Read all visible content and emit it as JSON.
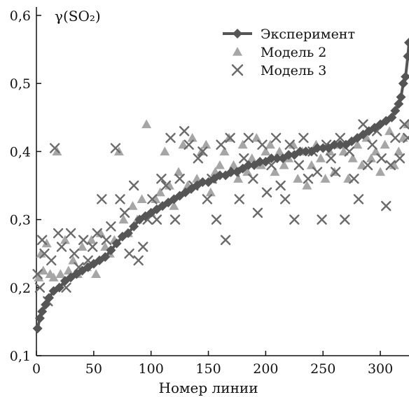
{
  "chart_data": {
    "type": "scatter",
    "xlabel": "Номер линии",
    "ylabel": "γ(SO₂)",
    "xlim": [
      0,
      325
    ],
    "ylim": [
      0.1,
      0.6
    ],
    "xticks": [
      "0",
      "50",
      "100",
      "150",
      "200",
      "250",
      "300"
    ],
    "yticks": [
      "0,1",
      "0,2",
      "0,3",
      "0,4",
      "0,5",
      "0,6"
    ],
    "legend_position": "top-right",
    "colors": {
      "experiment": "#555555",
      "model2": "#a6a6a6",
      "model3": "#6a6a6a",
      "axis": "#111111"
    },
    "series": [
      {
        "name": "Эксперимент",
        "marker": "diamond-line",
        "x": [
          1,
          3,
          5,
          8,
          11,
          15,
          20,
          25,
          30,
          35,
          40,
          45,
          50,
          55,
          60,
          65,
          70,
          75,
          80,
          85,
          90,
          95,
          100,
          105,
          110,
          115,
          120,
          125,
          130,
          135,
          140,
          145,
          150,
          155,
          160,
          165,
          170,
          175,
          180,
          185,
          190,
          195,
          200,
          205,
          210,
          215,
          220,
          225,
          230,
          235,
          240,
          245,
          250,
          255,
          260,
          265,
          270,
          275,
          280,
          285,
          290,
          295,
          300,
          305,
          310,
          313,
          316,
          318,
          320,
          322,
          324,
          325
        ],
        "y": [
          0.14,
          0.155,
          0.165,
          0.175,
          0.185,
          0.195,
          0.2,
          0.21,
          0.215,
          0.22,
          0.225,
          0.23,
          0.235,
          0.24,
          0.245,
          0.255,
          0.265,
          0.275,
          0.28,
          0.29,
          0.3,
          0.305,
          0.31,
          0.315,
          0.32,
          0.325,
          0.33,
          0.335,
          0.34,
          0.345,
          0.35,
          0.355,
          0.355,
          0.36,
          0.365,
          0.365,
          0.37,
          0.37,
          0.375,
          0.38,
          0.38,
          0.385,
          0.385,
          0.39,
          0.39,
          0.39,
          0.395,
          0.395,
          0.4,
          0.4,
          0.4,
          0.405,
          0.405,
          0.405,
          0.41,
          0.41,
          0.41,
          0.415,
          0.42,
          0.425,
          0.43,
          0.435,
          0.44,
          0.445,
          0.45,
          0.46,
          0.47,
          0.48,
          0.5,
          0.51,
          0.54,
          0.56
        ]
      },
      {
        "name": "Модель 2",
        "marker": "triangle",
        "x": [
          2,
          4,
          6,
          9,
          12,
          15,
          18,
          21,
          25,
          28,
          32,
          36,
          40,
          44,
          48,
          52,
          56,
          60,
          64,
          68,
          72,
          76,
          80,
          84,
          88,
          92,
          96,
          100,
          104,
          108,
          112,
          116,
          120,
          124,
          128,
          132,
          136,
          140,
          144,
          148,
          152,
          156,
          160,
          164,
          168,
          172,
          176,
          180,
          184,
          188,
          192,
          196,
          200,
          204,
          208,
          212,
          216,
          220,
          224,
          228,
          232,
          236,
          240,
          244,
          248,
          252,
          256,
          260,
          264,
          268,
          272,
          276,
          280,
          284,
          288,
          292,
          296,
          300,
          304,
          308,
          312,
          316,
          320,
          324
        ],
        "y": [
          0.215,
          0.25,
          0.225,
          0.265,
          0.22,
          0.215,
          0.4,
          0.22,
          0.27,
          0.225,
          0.24,
          0.22,
          0.26,
          0.23,
          0.27,
          0.22,
          0.28,
          0.26,
          0.25,
          0.27,
          0.4,
          0.3,
          0.28,
          0.32,
          0.3,
          0.33,
          0.44,
          0.31,
          0.33,
          0.34,
          0.4,
          0.35,
          0.32,
          0.37,
          0.41,
          0.35,
          0.42,
          0.36,
          0.4,
          0.41,
          0.34,
          0.37,
          0.38,
          0.4,
          0.42,
          0.38,
          0.36,
          0.41,
          0.37,
          0.39,
          0.42,
          0.38,
          0.4,
          0.41,
          0.37,
          0.4,
          0.38,
          0.39,
          0.41,
          0.36,
          0.4,
          0.35,
          0.38,
          0.41,
          0.39,
          0.36,
          0.4,
          0.37,
          0.41,
          0.4,
          0.36,
          0.39,
          0.41,
          0.38,
          0.42,
          0.39,
          0.4,
          0.37,
          0.41,
          0.43,
          0.38,
          0.4,
          0.42,
          0.44
        ]
      },
      {
        "name": "Модель 3",
        "marker": "x",
        "x": [
          1,
          3,
          5,
          7,
          10,
          13,
          16,
          19,
          22,
          26,
          30,
          33,
          37,
          41,
          45,
          49,
          53,
          57,
          61,
          65,
          69,
          73,
          77,
          81,
          85,
          89,
          93,
          97,
          101,
          105,
          109,
          113,
          117,
          121,
          125,
          129,
          133,
          137,
          141,
          145,
          149,
          153,
          157,
          161,
          165,
          169,
          173,
          177,
          181,
          185,
          189,
          193,
          197,
          201,
          205,
          209,
          213,
          217,
          221,
          225,
          229,
          233,
          237,
          241,
          245,
          249,
          253,
          257,
          261,
          265,
          269,
          273,
          277,
          281,
          285,
          289,
          293,
          297,
          301,
          305,
          309,
          313,
          317,
          321,
          324
        ],
        "y": [
          0.22,
          0.2,
          0.27,
          0.25,
          0.18,
          0.24,
          0.405,
          0.28,
          0.26,
          0.2,
          0.28,
          0.25,
          0.23,
          0.27,
          0.24,
          0.26,
          0.28,
          0.33,
          0.27,
          0.29,
          0.405,
          0.33,
          0.31,
          0.25,
          0.35,
          0.24,
          0.26,
          0.3,
          0.33,
          0.3,
          0.36,
          0.35,
          0.42,
          0.3,
          0.36,
          0.43,
          0.41,
          0.35,
          0.39,
          0.4,
          0.33,
          0.36,
          0.3,
          0.41,
          0.27,
          0.42,
          0.37,
          0.33,
          0.39,
          0.42,
          0.36,
          0.31,
          0.41,
          0.34,
          0.38,
          0.42,
          0.35,
          0.33,
          0.41,
          0.3,
          0.38,
          0.42,
          0.36,
          0.4,
          0.37,
          0.3,
          0.41,
          0.39,
          0.37,
          0.42,
          0.3,
          0.4,
          0.36,
          0.33,
          0.44,
          0.38,
          0.41,
          0.43,
          0.39,
          0.32,
          0.38,
          0.42,
          0.39,
          0.44,
          0.42
        ]
      }
    ]
  }
}
